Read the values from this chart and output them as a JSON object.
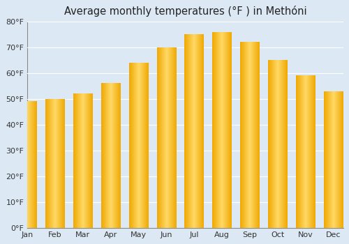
{
  "title": "Average monthly temperatures (°F ) in Methóni",
  "categories": [
    "Jan",
    "Feb",
    "Mar",
    "Apr",
    "May",
    "Jun",
    "Jul",
    "Aug",
    "Sep",
    "Oct",
    "Nov",
    "Dec"
  ],
  "values": [
    49,
    50,
    52,
    56,
    64,
    70,
    75,
    76,
    72,
    65,
    59,
    53
  ],
  "ylim": [
    0,
    80
  ],
  "yticks": [
    0,
    10,
    20,
    30,
    40,
    50,
    60,
    70,
    80
  ],
  "ytick_labels": [
    "0°F",
    "10°F",
    "20°F",
    "30°F",
    "40°F",
    "50°F",
    "60°F",
    "70°F",
    "80°F"
  ],
  "bar_color_center": "#FFD966",
  "bar_color_edge": "#F0A800",
  "background_color": "#dce9f5",
  "plot_bg_color": "#dce9f5",
  "grid_color": "#ffffff",
  "title_fontsize": 10.5,
  "tick_fontsize": 8
}
